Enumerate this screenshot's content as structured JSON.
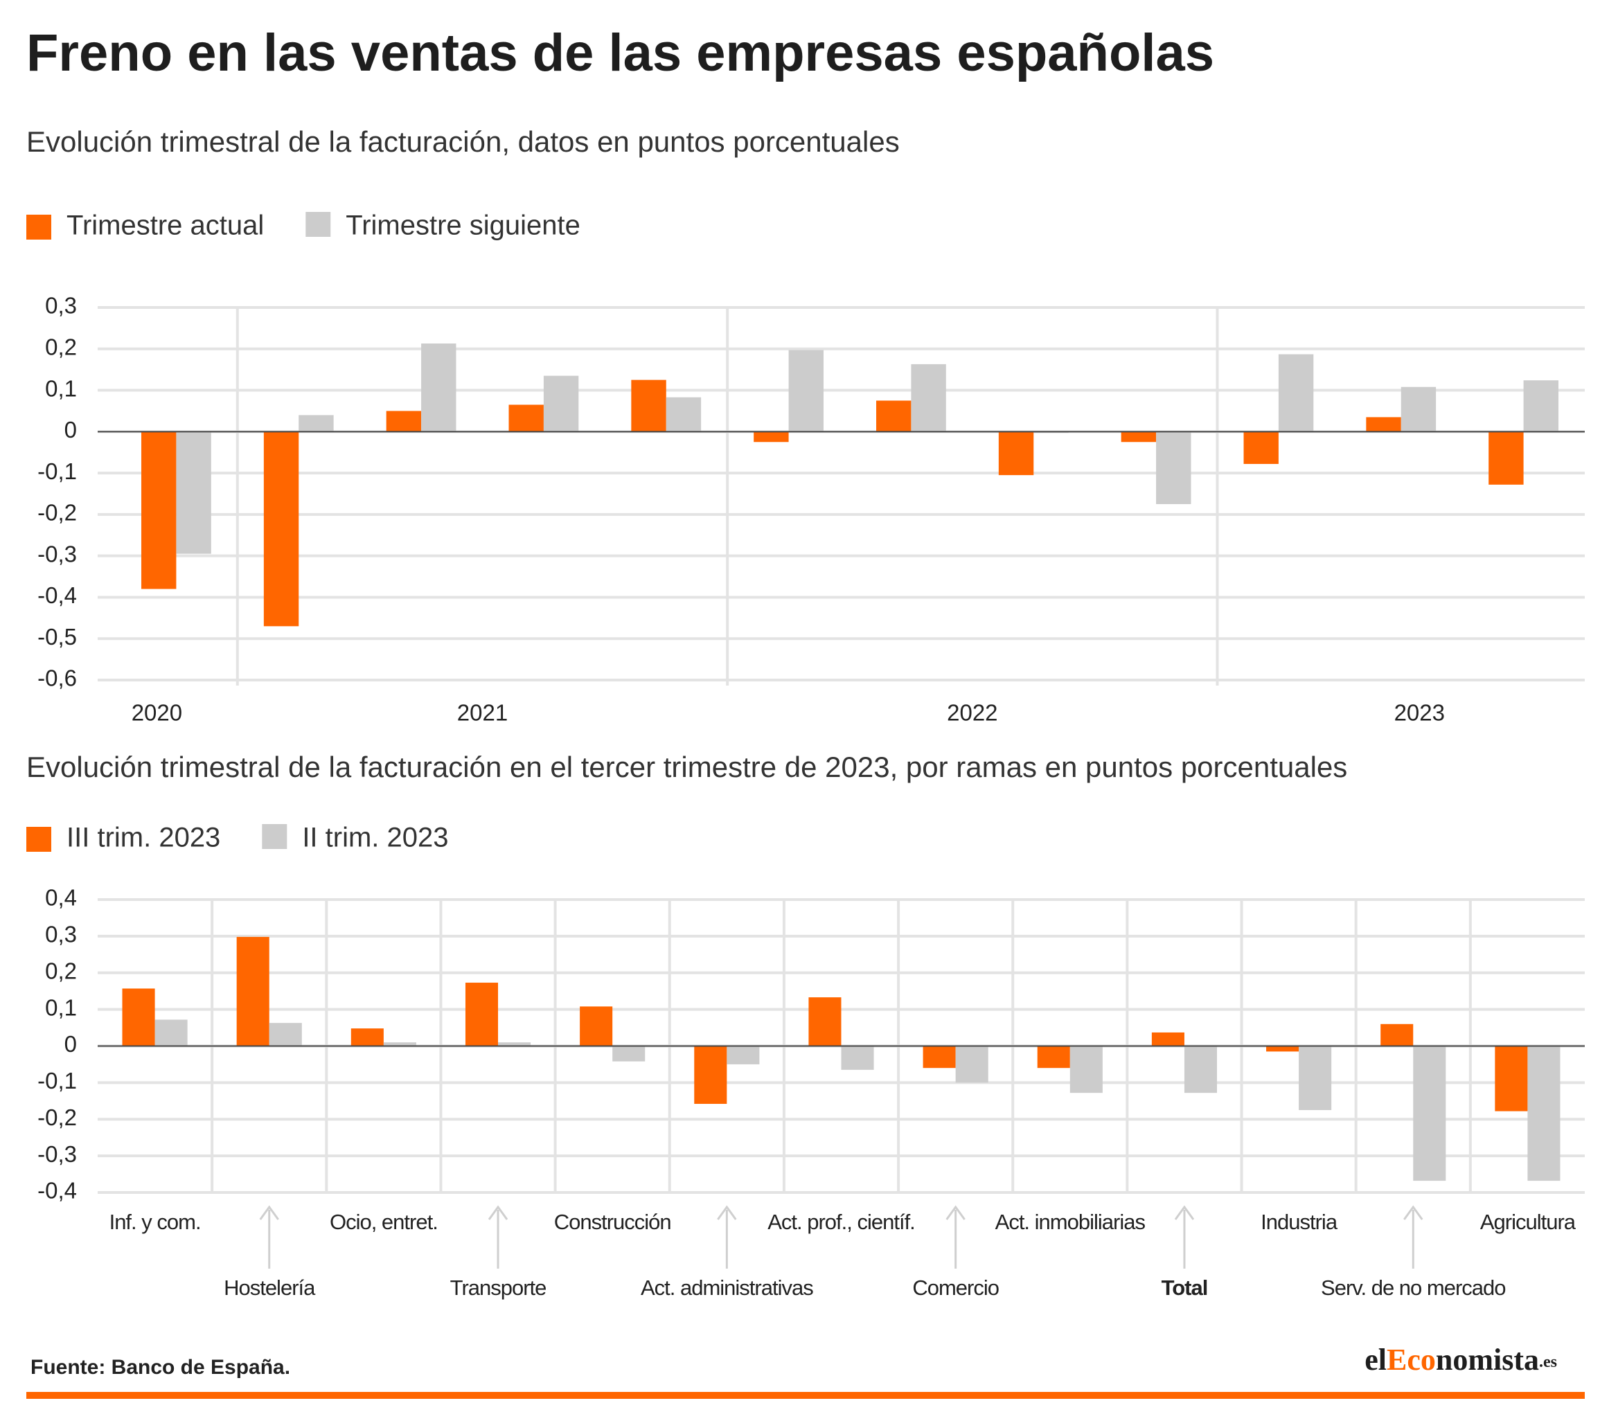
{
  "header": {
    "title": "Freno en las ventas de las empresas españolas"
  },
  "chart_data": [
    {
      "type": "bar",
      "title": "Evolución trimestral de la facturación, datos en puntos porcentuales",
      "categories": [
        "2020",
        "2021",
        null,
        null,
        null,
        "2022",
        null,
        null,
        null,
        "2023",
        null,
        null
      ],
      "category_label_mode": "span",
      "series": [
        {
          "name": "Trimestre actual",
          "color": "#ff6600",
          "values": [
            -0.38,
            -0.47,
            0.05,
            0.065,
            0.125,
            -0.025,
            0.075,
            -0.105,
            -0.025,
            -0.078,
            0.035,
            -0.128
          ]
        },
        {
          "name": "Trimestre siguiente",
          "color": "#cccccc",
          "values": [
            -0.295,
            0.04,
            0.213,
            0.135,
            0.083,
            0.197,
            0.163,
            -0.003,
            -0.175,
            0.187,
            0.108,
            0.124
          ]
        }
      ],
      "ylim": [
        -0.6,
        0.3
      ],
      "yticks": [
        {
          "value": -0.6,
          "label": "-0,6"
        },
        {
          "value": -0.5,
          "label": "-0,5"
        },
        {
          "value": -0.4,
          "label": "-0,4"
        },
        {
          "value": -0.3,
          "label": "-0,3"
        },
        {
          "value": -0.2,
          "label": "-0,2"
        },
        {
          "value": -0.1,
          "label": "-0,1"
        },
        0,
        {
          "value": 0.1,
          "label": "0,1"
        },
        {
          "value": 0.2,
          "label": "0,2"
        },
        {
          "value": 0.3,
          "label": "0,3"
        }
      ],
      "grid": true
    },
    {
      "type": "bar",
      "title": "Evolución trimestral de la facturación en el tercer trimestre de 2023, por ramas en puntos porcentuales",
      "categories": [
        "Inf. y com.",
        "Hostelería",
        "Ocio, entret.",
        "Transporte",
        "Construcción",
        "Act. administrativas",
        "Act. prof., científ.",
        "Comercio",
        "Act. inmobiliarias",
        "Total",
        "Industria",
        "Serv. de no mercado",
        "Agricultura"
      ],
      "category_label_mode": "staggered",
      "bold_category_index": 9,
      "series": [
        {
          "name": "III trim. 2023",
          "color": "#ff6600",
          "values": [
            0.157,
            0.298,
            0.048,
            0.173,
            0.108,
            -0.158,
            0.133,
            -0.06,
            -0.06,
            0.037,
            -0.015,
            0.06,
            -0.178
          ]
        },
        {
          "name": "II trim. 2023",
          "color": "#cccccc",
          "values": [
            0.072,
            0.063,
            0.01,
            0.01,
            -0.042,
            -0.05,
            -0.065,
            -0.1,
            -0.128,
            -0.128,
            -0.175,
            -0.368,
            -0.368
          ]
        }
      ],
      "ylim": [
        -0.4,
        0.4
      ],
      "yticks": [
        {
          "value": -0.4,
          "label": "-0,4"
        },
        {
          "value": -0.3,
          "label": "-0,3"
        },
        {
          "value": -0.2,
          "label": "-0,2"
        },
        {
          "value": -0.1,
          "label": "-0,1"
        },
        0,
        {
          "value": 0.1,
          "label": "0,1"
        },
        {
          "value": 0.2,
          "label": "0,2"
        },
        {
          "value": 0.3,
          "label": "0,3"
        },
        {
          "value": 0.4,
          "label": "0,4"
        }
      ],
      "grid": true
    }
  ],
  "footer": {
    "source": "Fuente: Banco de España.",
    "logo": [
      "el",
      "Eco",
      "nomista",
      ".es"
    ]
  }
}
